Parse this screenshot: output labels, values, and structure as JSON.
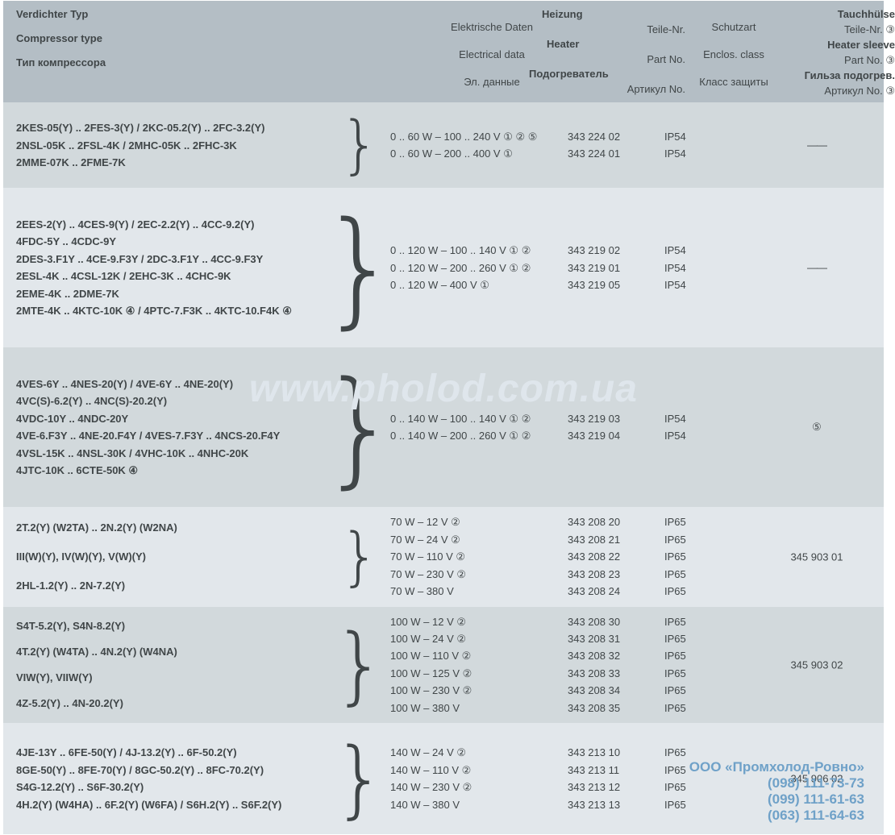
{
  "colors": {
    "header_bg": "#b4bec5",
    "band_a": "#d2d9dc",
    "band_b": "#e2e7eb",
    "text": "#404648",
    "watermark": "#dfe6ec",
    "promo": "#6fa1c8"
  },
  "header": {
    "left": {
      "de": "Verdichter Typ",
      "en": "Compressor type",
      "ru": "Тип компрессора"
    },
    "heating_group": {
      "de": "Heizung",
      "en": "Heater",
      "ru": "Подогреватель"
    },
    "col_electrical": {
      "de": "Elektrische Daten",
      "en": "Electrical data",
      "ru": "Эл. данные"
    },
    "col_partno": {
      "de": "Teile-Nr.",
      "en": "Part No.",
      "ru": "Артикул No."
    },
    "col_enclos": {
      "de": "Schutzart",
      "en": "Enclos. class",
      "ru": "Класс защиты"
    },
    "sleeve_group": {
      "de": "Tauchhülse",
      "en": "Heater sleeve",
      "ru": "Гильза подогрев."
    },
    "col_sleeve_part": {
      "de": "Teile-Nr.  ③",
      "en": "Part No.  ③",
      "ru": "Артикул No. ③"
    }
  },
  "sections": [
    {
      "left": [
        "2KES-05(Y) .. 2FES-3(Y) / 2KC-05.2(Y) .. 2FC-3.2(Y)",
        "2NSL-05K .. 2FSL-4K / 2MHC-05K .. 2FHC-3K",
        "2MME-07K .. 2FME-7K"
      ],
      "rows": [
        {
          "elec": "0 .. 60 W – 100 .. 240 V ① ② ⑤",
          "part": "343 224 02",
          "ip": "IP54"
        },
        {
          "elec": "0 .. 60 W – 200 .. 400 V ①",
          "part": "343 224 01",
          "ip": "IP54"
        }
      ],
      "sleeve": "——"
    },
    {
      "left": [
        "2EES-2(Y) .. 4CES-9(Y) / 2EC-2.2(Y) .. 4CC-9.2(Y)",
        "4FDC-5Y .. 4CDC-9Y",
        "2DES-3.F1Y .. 4CE-9.F3Y / 2DC-3.F1Y .. 4CC-9.F3Y",
        "2ESL-4K .. 4CSL-12K / 2EHC-3K .. 4CHC-9K",
        "2EME-4K .. 2DME-7K",
        "2MTE-4K .. 4KTC-10K ④ / 4PTC-7.F3K .. 4KTC-10.F4K ④"
      ],
      "rows": [
        {
          "elec": "0 .. 120 W – 100 .. 140 V ① ②",
          "part": "343 219 02",
          "ip": "IP54"
        },
        {
          "elec": "0 .. 120 W – 200 .. 260 V ① ②",
          "part": "343 219 01",
          "ip": "IP54"
        },
        {
          "elec": "0 .. 120 W – 400 V ①",
          "part": "343 219 05",
          "ip": "IP54"
        }
      ],
      "sleeve": "——"
    },
    {
      "left": [
        "4VES-6Y .. 4NES-20(Y) / 4VE-6Y .. 4NE-20(Y)",
        "4VC(S)-6.2(Y) .. 4NC(S)-20.2(Y)",
        "4VDC-10Y .. 4NDC-20Y",
        "4VE-6.F3Y .. 4NE-20.F4Y / 4VES-7.F3Y .. 4NCS-20.F4Y",
        "4VSL-15K .. 4NSL-30K / 4VHC-10K .. 4NHC-20K",
        "4JTC-10K .. 6CTE-50K ④"
      ],
      "rows": [
        {
          "elec": "0 .. 140 W – 100 .. 140 V ① ②",
          "part": "343 219 03",
          "ip": "IP54"
        },
        {
          "elec": "0 .. 140 W – 200 .. 260 V ① ②",
          "part": "343 219 04",
          "ip": "IP54"
        }
      ],
      "sleeve": "⑤"
    },
    {
      "left": [
        "2T.2(Y) (W2TA) .. 2N.2(Y) (W2NA)",
        "III(W)(Y), IV(W)(Y), V(W)(Y)",
        "2HL-1.2(Y) .. 2N-7.2(Y)"
      ],
      "left_spaced": true,
      "rows": [
        {
          "elec": "70 W – 12 V ②",
          "part": "343 208 20",
          "ip": "IP65"
        },
        {
          "elec": "70 W – 24 V ②",
          "part": "343 208 21",
          "ip": "IP65"
        },
        {
          "elec": "70 W – 110 V ②",
          "part": "343 208 22",
          "ip": "IP65"
        },
        {
          "elec": "70 W – 230 V ②",
          "part": "343 208 23",
          "ip": "IP65"
        },
        {
          "elec": "70 W – 380 V",
          "part": "343 208 24",
          "ip": "IP65"
        }
      ],
      "sleeve": "345 903 01"
    },
    {
      "left": [
        "S4T-5.2(Y), S4N-8.2(Y)",
        "4T.2(Y) (W4TA) .. 4N.2(Y) (W4NA)",
        "VIW(Y), VIIW(Y)",
        "4Z-5.2(Y) .. 4N-20.2(Y)"
      ],
      "left_spaced": true,
      "rows": [
        {
          "elec": "100 W – 12 V ②",
          "part": "343 208 30",
          "ip": "IP65"
        },
        {
          "elec": "100 W – 24 V ②",
          "part": "343 208 31",
          "ip": "IP65"
        },
        {
          "elec": "100 W – 110 V ②",
          "part": "343 208 32",
          "ip": "IP65"
        },
        {
          "elec": "100 W – 125 V ②",
          "part": "343 208 33",
          "ip": "IP65"
        },
        {
          "elec": "100 W – 230 V ②",
          "part": "343 208 34",
          "ip": "IP65"
        },
        {
          "elec": "100 W – 380 V",
          "part": "343 208 35",
          "ip": "IP65"
        }
      ],
      "sleeve": "345 903 02"
    },
    {
      "left": [
        "4JE-13Y .. 6FE-50(Y) / 4J-13.2(Y) .. 6F-50.2(Y)",
        "8GE-50(Y) .. 8FE-70(Y) / 8GC-50.2(Y) .. 8FC-70.2(Y)",
        "S4G-12.2(Y) .. S6F-30.2(Y)",
        "4H.2(Y) (W4HA) .. 6F.2(Y) (W6FA) / S6H.2(Y) .. S6F.2(Y)"
      ],
      "left_spaced": true,
      "rows": [
        {
          "elec": "140 W – 24 V ②",
          "part": "343 213 10",
          "ip": "IP65"
        },
        {
          "elec": "140 W – 110 V ②",
          "part": "343 213 11",
          "ip": "IP65"
        },
        {
          "elec": "140 W – 230 V ②",
          "part": "343 213 12",
          "ip": "IP65"
        },
        {
          "elec": "140 W – 380 V",
          "part": "343 213 13",
          "ip": "IP65"
        }
      ],
      "sleeve": "345 906 02"
    }
  ],
  "watermark": "www.pholod.com.ua",
  "promo": {
    "name": "ООО «Промхолод-Ровно»",
    "phones": [
      "(098) 111-73-73",
      "(099) 111-61-63",
      "(063) 111-64-63"
    ]
  }
}
